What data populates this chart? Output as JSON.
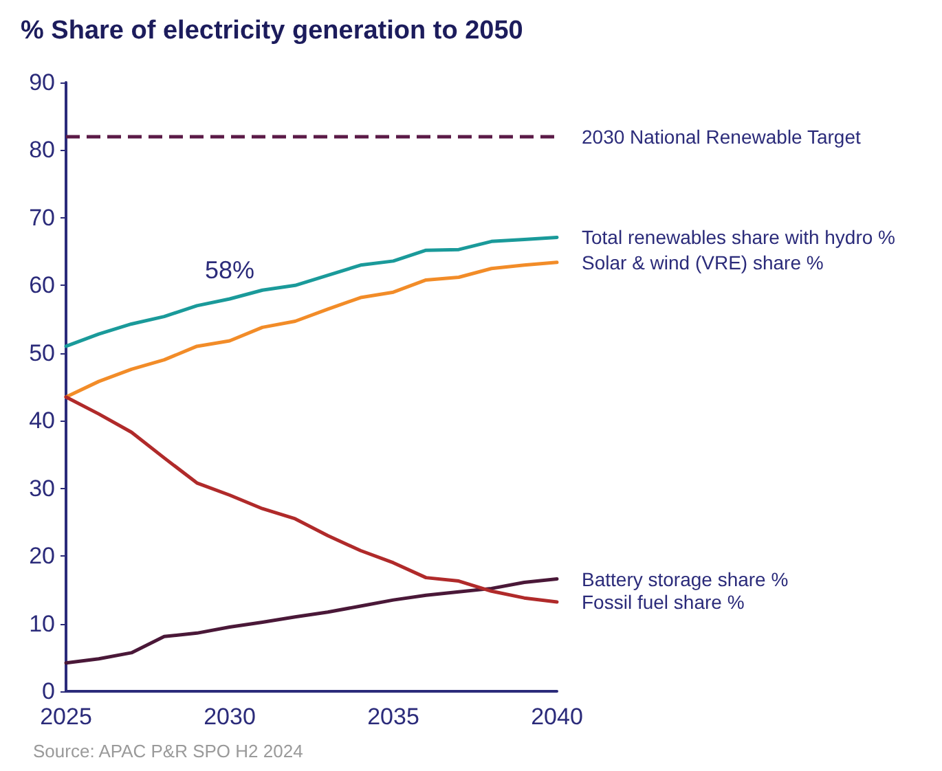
{
  "chart_data": {
    "type": "line",
    "title": "% Share of electricity generation to 2050",
    "x": [
      2025,
      2026,
      2027,
      2028,
      2029,
      2030,
      2031,
      2032,
      2033,
      2034,
      2035,
      2036,
      2037,
      2038,
      2039,
      2040
    ],
    "series": [
      {
        "name": "Total renewables share with hydro %",
        "color": "#1a9a9a",
        "values": [
          51,
          52.8,
          54.3,
          55.4,
          57,
          58,
          59.3,
          60,
          61.5,
          63,
          63.6,
          65.2,
          65.3,
          66.5,
          66.8,
          67.1
        ]
      },
      {
        "name": "Solar & wind (VRE) share %",
        "color": "#f28c28",
        "values": [
          43.5,
          45.8,
          47.6,
          49,
          51,
          51.8,
          53.8,
          54.7,
          56.5,
          58.2,
          59,
          60.8,
          61.2,
          62.5,
          63,
          63.4
        ]
      },
      {
        "name": "Battery storage share %",
        "color": "#4a1838",
        "values": [
          4.2,
          4.8,
          5.7,
          8.1,
          8.6,
          9.5,
          10.2,
          11,
          11.7,
          12.6,
          13.5,
          14.2,
          14.7,
          15.2,
          16.1,
          16.6
        ]
      },
      {
        "name": "Fossil fuel share %",
        "color": "#b02a2a",
        "values": [
          43.5,
          41,
          38.3,
          34.5,
          30.8,
          29,
          27,
          25.5,
          23,
          20.8,
          19,
          16.8,
          16.3,
          14.8,
          13.8,
          13.2
        ]
      }
    ],
    "xlim": [
      2025,
      2040
    ],
    "xticks": [
      2025,
      2030,
      2035,
      2040
    ],
    "ylim": [
      0,
      90
    ],
    "yticks": [
      0,
      10,
      20,
      30,
      40,
      50,
      60,
      70,
      80,
      90
    ],
    "ref_lines": [
      {
        "axis": "y",
        "value": 82,
        "label": "2030 National Renewable Target",
        "color": "#5b1a47",
        "line_style": "dashed"
      }
    ],
    "annotations": [
      {
        "text": "58%",
        "x": 2030,
        "y": 58
      },
      "Source: APAC P&R SPO H2 2024"
    ],
    "grid": false,
    "legend": false,
    "marker": "none",
    "line_style": "solid"
  }
}
